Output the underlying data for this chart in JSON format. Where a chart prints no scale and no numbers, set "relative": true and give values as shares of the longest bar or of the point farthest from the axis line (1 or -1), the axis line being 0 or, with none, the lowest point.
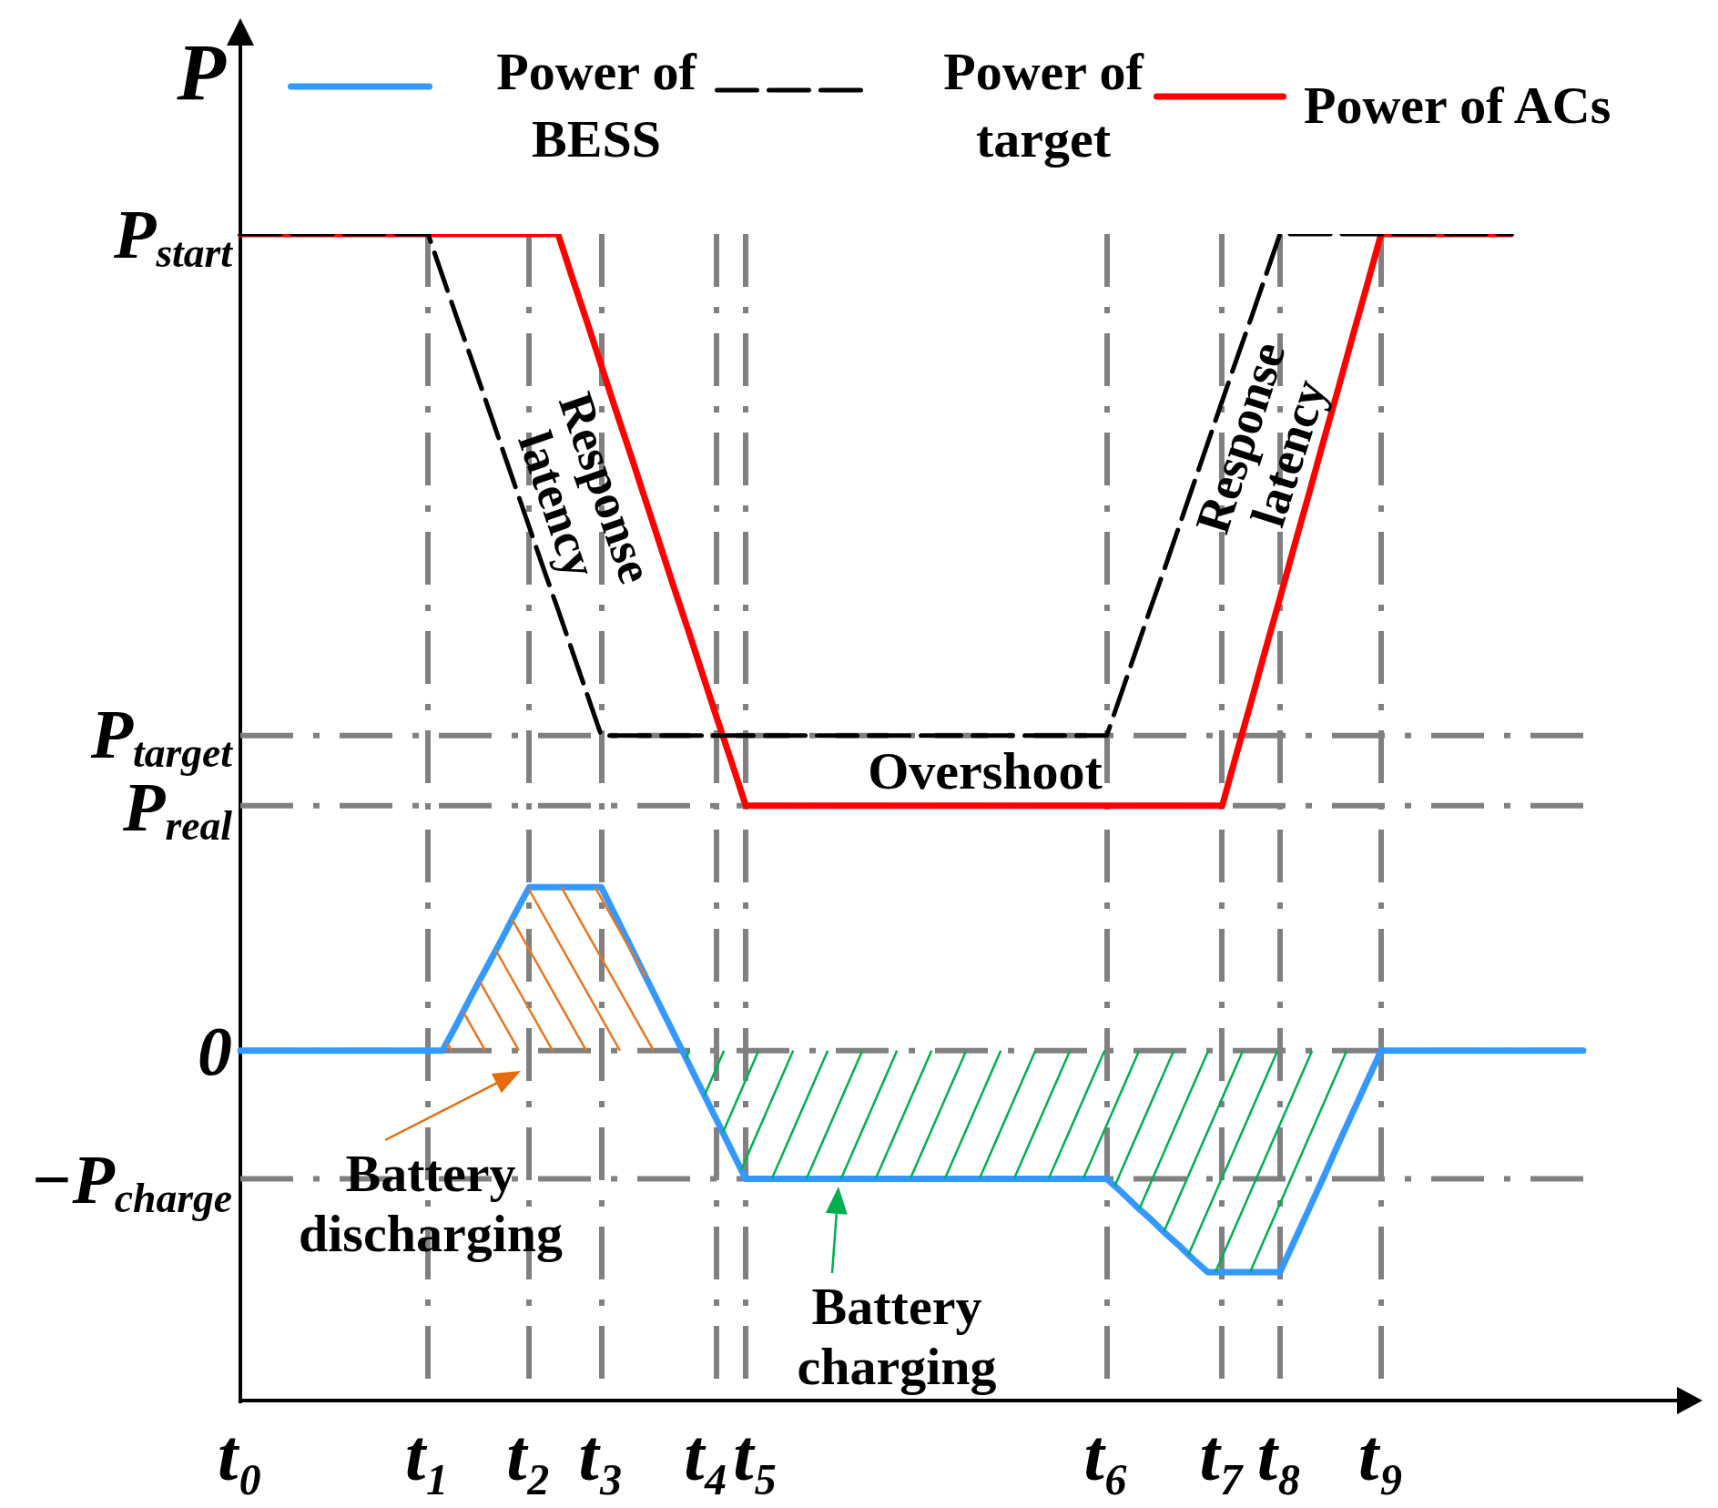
{
  "chart_data": {
    "type": "line",
    "ylabel": "P",
    "relative": true,
    "categories": [
      "t₀",
      null,
      null,
      null,
      null,
      null,
      null,
      null,
      null,
      null,
      null,
      null,
      null,
      "t₁",
      null,
      null,
      null,
      null,
      null,
      null,
      "t₂",
      null,
      null,
      null,
      null,
      "t₃",
      null,
      null,
      null,
      null,
      null,
      null,
      null,
      "t₄",
      null,
      "t₅",
      null,
      null,
      null,
      null,
      null,
      null,
      null,
      null,
      null,
      null,
      null,
      null,
      null,
      null,
      null,
      null,
      null,
      null,
      null,
      null,
      null,
      null,
      null,
      null,
      "t₆",
      null,
      null,
      null,
      null,
      null,
      null,
      null,
      "t₇",
      null,
      null,
      null,
      "t₈",
      null,
      null,
      null,
      null,
      null,
      null,
      "t₉",
      null,
      null,
      null,
      null,
      null,
      null,
      null,
      null,
      null,
      null,
      null,
      null,
      null,
      null
    ],
    "series": [
      {
        "name": "Power of BESS",
        "color": "#3399ff",
        "values": [
          0.3,
          0.3,
          0.3,
          0.3,
          0.3,
          0.3,
          0.3,
          0.3,
          0.3,
          0.3,
          0.3,
          0.3,
          0.3,
          0.3,
          0.3,
          0.323,
          0.347,
          0.37,
          0.393,
          0.417,
          0.44,
          0.44,
          0.44,
          0.44,
          0.44,
          0.44,
          0.415,
          0.39,
          0.365,
          0.34,
          0.315,
          0.29,
          0.265,
          0.24,
          0.215,
          0.19,
          0.19,
          0.19,
          0.19,
          0.19,
          0.19,
          0.19,
          0.19,
          0.19,
          0.19,
          0.19,
          0.19,
          0.19,
          0.19,
          0.19,
          0.19,
          0.19,
          0.19,
          0.19,
          0.19,
          0.19,
          0.19,
          0.19,
          0.19,
          0.19,
          0.19,
          0.179,
          0.167,
          0.156,
          0.144,
          0.133,
          0.121,
          0.11,
          0.11,
          0.11,
          0.11,
          0.11,
          0.11,
          0.137,
          0.164,
          0.191,
          0.219,
          0.246,
          0.273,
          0.3,
          0.3,
          0.3,
          0.3,
          0.3,
          0.3,
          0.3,
          0.3,
          0.3,
          0.3,
          0.3,
          0.3,
          0.3,
          0.3,
          0.3
        ]
      },
      {
        "name": "Power of target",
        "color": "#000000",
        "line_style": "dashed",
        "values": [
          1,
          1,
          1,
          1,
          1,
          1,
          1,
          1,
          1,
          1,
          1,
          1,
          1,
          1,
          0.964,
          0.928,
          0.893,
          0.857,
          0.821,
          0.785,
          0.749,
          0.713,
          0.678,
          0.642,
          0.606,
          0.57,
          0.57,
          0.57,
          0.57,
          0.57,
          0.57,
          0.57,
          0.57,
          0.57,
          0.57,
          0.57,
          0.57,
          0.57,
          0.57,
          0.57,
          0.57,
          0.57,
          0.57,
          0.57,
          0.57,
          0.57,
          0.57,
          0.57,
          0.57,
          0.57,
          0.57,
          0.57,
          0.57,
          0.57,
          0.57,
          0.57,
          0.57,
          0.57,
          0.57,
          0.57,
          0.57,
          0.606,
          0.642,
          0.678,
          0.713,
          0.749,
          0.785,
          0.821,
          0.857,
          0.893,
          0.928,
          0.964,
          1,
          1,
          1,
          1,
          1,
          1,
          1,
          1,
          1,
          1,
          1,
          1,
          1,
          1,
          1,
          1,
          1,
          null,
          null,
          null,
          null,
          null
        ]
      },
      {
        "name": "Power of ACs",
        "color": "#ff0000",
        "values": [
          1,
          1,
          1,
          1,
          1,
          1,
          1,
          1,
          1,
          1,
          1,
          1,
          1,
          1,
          1,
          1,
          1,
          1,
          1,
          1,
          1,
          1,
          1,
          0.962,
          0.925,
          0.887,
          0.849,
          0.812,
          0.774,
          0.736,
          0.698,
          0.661,
          0.623,
          0.585,
          0.548,
          0.51,
          0.51,
          0.51,
          0.51,
          0.51,
          0.51,
          0.51,
          0.51,
          0.51,
          0.51,
          0.51,
          0.51,
          0.51,
          0.51,
          0.51,
          0.51,
          0.51,
          0.51,
          0.51,
          0.51,
          0.51,
          0.51,
          0.51,
          0.51,
          0.51,
          0.51,
          0.51,
          0.51,
          0.51,
          0.51,
          0.51,
          0.51,
          0.51,
          0.51,
          0.555,
          0.599,
          0.644,
          0.688,
          0.733,
          0.777,
          0.822,
          0.866,
          0.911,
          0.955,
          1,
          1,
          1,
          1,
          1,
          1,
          1,
          1,
          1,
          1,
          null,
          null,
          null,
          null,
          null
        ]
      }
    ],
    "grid": "x",
    "legend": "top",
    "marker": "none",
    "ref_lines": [
      {
        "axis": "y",
        "value": 0.57,
        "label": "P$_{target}$",
        "color": "#808080",
        "line_style": "dashed"
      },
      {
        "axis": "y",
        "value": 0.51,
        "label": "P$_{real}$",
        "color": "#808080",
        "line_style": "dashed"
      },
      {
        "axis": "y",
        "value": 0.3,
        "label": "0",
        "color": "#808080",
        "line_style": "dashed"
      },
      {
        "axis": "y",
        "value": 0.19,
        "label": "−P$_{charge}$",
        "color": "#808080",
        "line_style": "dashed"
      }
    ],
    "annotations": [
      "P$_{start}$",
      "Response latency",
      "Response latency",
      "Overshoot",
      "Battery discharging",
      "Battery charging"
    ]
  }
}
